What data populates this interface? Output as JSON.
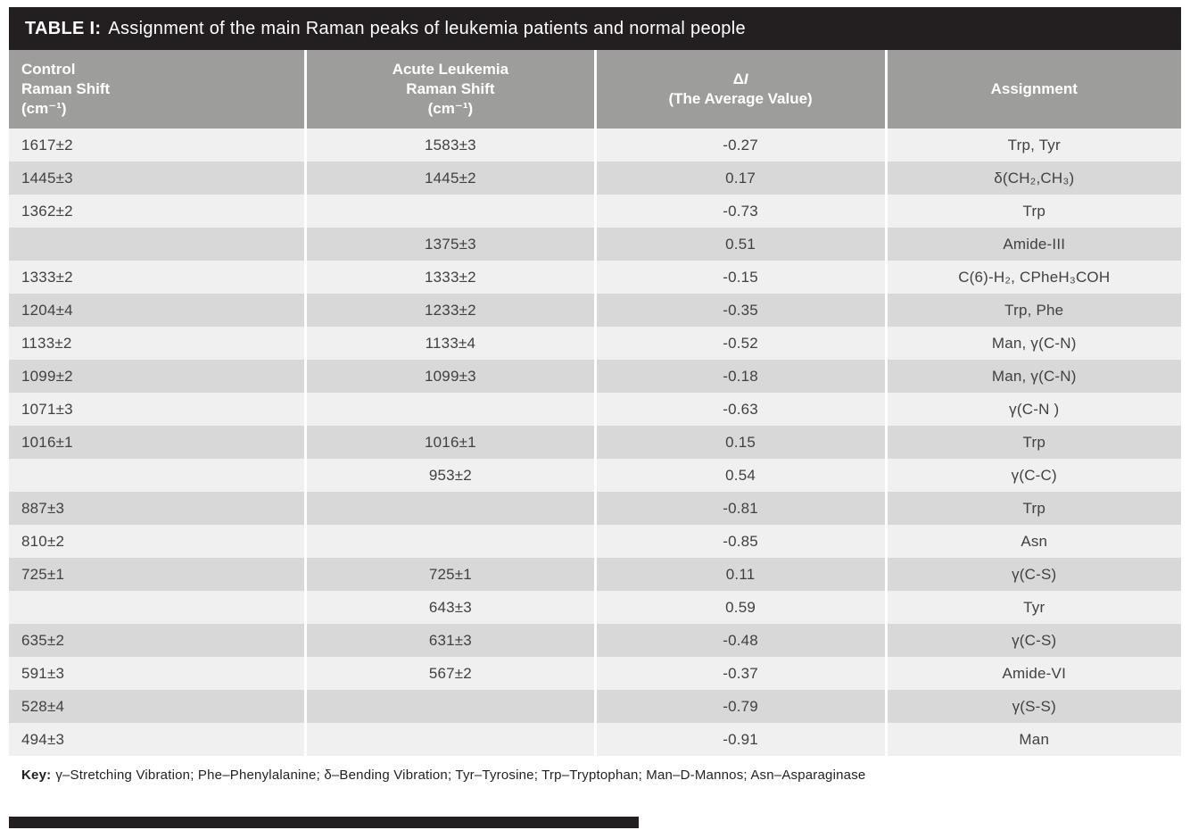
{
  "table": {
    "title": {
      "label": "TABLE I:",
      "text": "Assignment of the main Raman peaks of leukemia patients and normal people"
    },
    "columns": {
      "control": [
        "Control",
        "Raman Shift",
        "(cm⁻¹)"
      ],
      "leukemia": [
        "Acute Leukemia",
        "Raman Shift",
        "(cm⁻¹)"
      ],
      "delta": {
        "symbol": "Δ",
        "letter": "I",
        "sub": "(The Average Value)"
      },
      "assignment": "Assignment"
    },
    "rows": [
      [
        "1617±2",
        "1583±3",
        "-0.27",
        "Trp, Tyr"
      ],
      [
        "1445±3",
        "1445±2",
        "0.17",
        "δ(CH₂,CH₃)"
      ],
      [
        "1362±2",
        "",
        "-0.73",
        "Trp"
      ],
      [
        "",
        "1375±3",
        "0.51",
        "Amide-III"
      ],
      [
        "1333±2",
        "1333±2",
        "-0.15",
        "C(6)-H₂, CPheH₃COH"
      ],
      [
        "1204±4",
        "1233±2",
        "-0.35",
        "Trp, Phe"
      ],
      [
        "1133±2",
        "1133±4",
        "-0.52",
        "Man, γ(C-N)"
      ],
      [
        "1099±2",
        "1099±3",
        "-0.18",
        "Man, γ(C-N)"
      ],
      [
        "1071±3",
        "",
        "-0.63",
        "γ(C-N )"
      ],
      [
        "1016±1",
        "1016±1",
        "0.15",
        "Trp"
      ],
      [
        "",
        "953±2",
        "0.54",
        "γ(C-C)"
      ],
      [
        "887±3",
        "",
        "-0.81",
        "Trp"
      ],
      [
        "810±2",
        "",
        "-0.85",
        "Asn"
      ],
      [
        "725±1",
        "725±1",
        "0.11",
        "γ(C-S)"
      ],
      [
        "",
        "643±3",
        "0.59",
        "Tyr"
      ],
      [
        "635±2",
        "631±3",
        "-0.48",
        "γ(C-S)"
      ],
      [
        "591±3",
        "567±2",
        "-0.37",
        "Amide-VI"
      ],
      [
        "528±4",
        "",
        "-0.79",
        "γ(S-S)"
      ],
      [
        "494±3",
        "",
        "-0.91",
        "Man"
      ]
    ],
    "key": {
      "label": "Key:",
      "text": "γ–Stretching Vibration; Phe–Phenylalanine; δ–Bending Vibration; Tyr–Tyrosine; Trp–Tryptophan; Man–D-Mannos; Asn–Asparaginase"
    },
    "colors": {
      "title_bg": "#231f20",
      "header_bg": "#9d9d9c",
      "row_light": "#f1f0f0",
      "row_dark": "#d9d8d8"
    }
  }
}
